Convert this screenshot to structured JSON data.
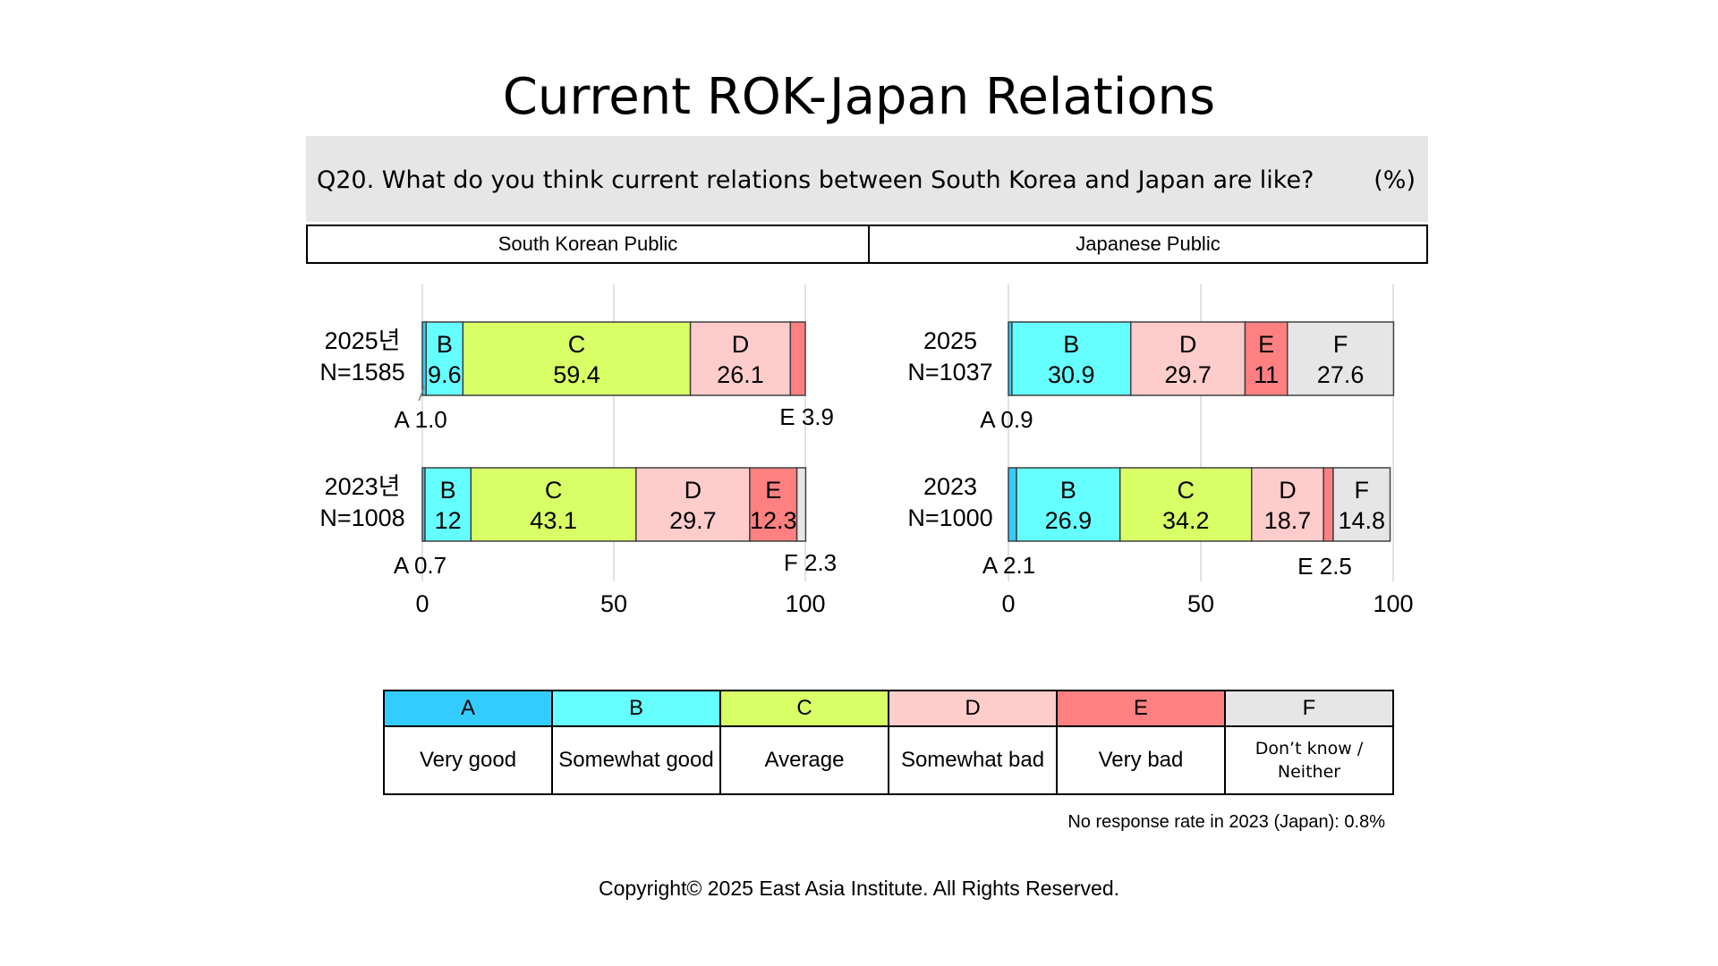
{
  "title": "Current ROK-Japan Relations",
  "question": "Q20. What do you think current relations between South Korea and Japan are like?",
  "unit": "(%)",
  "note": "No response rate in 2023 (Japan): 0.8%",
  "copyright": "Copyright© 2025 East Asia Institute. All Rights Reserved.",
  "colors": {
    "A": "#33ccff",
    "B": "#66ffff",
    "C": "#d9ff66",
    "D": "#ffcccc",
    "E": "#ff8080",
    "F": "#e6e6e6"
  },
  "legend": {
    "codes": [
      "A",
      "B",
      "C",
      "D",
      "E",
      "F"
    ],
    "labels": [
      "Very good",
      "Somewhat good",
      "Average",
      "Somewhat bad",
      "Very bad",
      "Don’t know / Neither"
    ]
  },
  "chart_data": [
    {
      "type": "bar",
      "stacked": true,
      "orientation": "horizontal",
      "title": "South Korean Public",
      "xlim": [
        0,
        100
      ],
      "xticks": [
        0,
        50,
        100
      ],
      "grid": true,
      "rows": [
        {
          "label": "2025년",
          "n": "N=1585",
          "segments": [
            {
              "key": "A",
              "value": 1.0
            },
            {
              "key": "B",
              "value": 9.6
            },
            {
              "key": "C",
              "value": 59.4
            },
            {
              "key": "D",
              "value": 26.1
            },
            {
              "key": "E",
              "value": 3.9
            }
          ]
        },
        {
          "label": "2023년",
          "n": "N=1008",
          "segments": [
            {
              "key": "A",
              "value": 0.7
            },
            {
              "key": "B",
              "value": 12.0
            },
            {
              "key": "C",
              "value": 43.1
            },
            {
              "key": "D",
              "value": 29.7
            },
            {
              "key": "E",
              "value": 12.3
            },
            {
              "key": "F",
              "value": 2.3
            }
          ]
        }
      ]
    },
    {
      "type": "bar",
      "stacked": true,
      "orientation": "horizontal",
      "title": "Japanese Public",
      "xlim": [
        0,
        100
      ],
      "xticks": [
        0,
        50,
        100
      ],
      "grid": true,
      "rows": [
        {
          "label": "2025",
          "n": "N=1037",
          "segments": [
            {
              "key": "A",
              "value": 0.9
            },
            {
              "key": "B",
              "value": 30.9
            },
            {
              "key": "D",
              "value": 29.7
            },
            {
              "key": "E",
              "value": 11
            },
            {
              "key": "F",
              "value": 27.6
            }
          ]
        },
        {
          "label": "2023",
          "n": "N=1000",
          "segments": [
            {
              "key": "A",
              "value": 2.1
            },
            {
              "key": "B",
              "value": 26.9
            },
            {
              "key": "C",
              "value": 34.2
            },
            {
              "key": "D",
              "value": 18.7
            },
            {
              "key": "E",
              "value": 2.5
            },
            {
              "key": "F",
              "value": 14.8
            }
          ]
        }
      ]
    }
  ]
}
